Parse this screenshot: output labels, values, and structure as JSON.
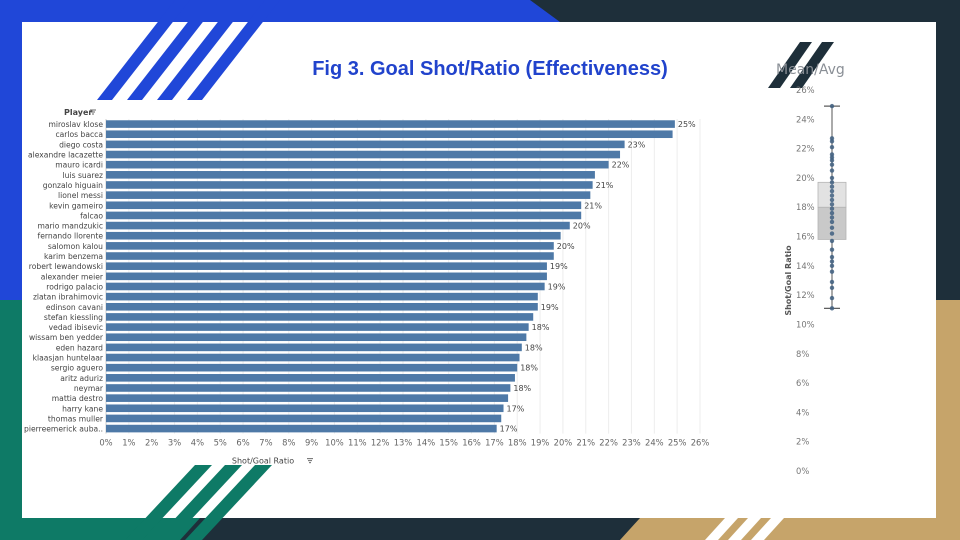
{
  "figure_title": "Fig 3. Goal Shot/Ratio (Effectiveness)",
  "side_title": "Mean/Avg",
  "colors": {
    "bar": "#4e79a7",
    "title": "#2143cc",
    "navy": "#1e2f3a",
    "blue_stripe": "#2047d8",
    "teal": "#0e7a66",
    "gold": "#c6a46a"
  },
  "icons": [
    "sort-icon"
  ],
  "chart_data": [
    {
      "type": "bar",
      "orientation": "horizontal",
      "row_header": "Player",
      "xlabel": "Shot/Goal Ratio",
      "xlim": [
        0,
        26
      ],
      "x_ticks": [
        "0%",
        "1%",
        "2%",
        "3%",
        "4%",
        "5%",
        "6%",
        "7%",
        "8%",
        "9%",
        "10%",
        "11%",
        "12%",
        "13%",
        "14%",
        "15%",
        "16%",
        "17%",
        "18%",
        "19%",
        "20%",
        "21%",
        "22%",
        "23%",
        "24%",
        "25%",
        "26%"
      ],
      "categories": [
        "miroslav klose",
        "carlos bacca",
        "diego costa",
        "alexandre lacazette",
        "mauro icardi",
        "luis suarez",
        "gonzalo higuain",
        "lionel messi",
        "kevin gameiro",
        "falcao",
        "mario mandzukic",
        "fernando llorente",
        "salomon kalou",
        "karim benzema",
        "robert lewandowski",
        "alexander meier",
        "rodrigo palacio",
        "zlatan ibrahimovic",
        "edinson cavani",
        "stefan kiessling",
        "vedad ibisevic",
        "wissam ben yedder",
        "eden hazard",
        "klaasjan huntelaar",
        "sergio aguero",
        "aritz aduriz",
        "neymar",
        "mattia destro",
        "harry kane",
        "thomas muller",
        "pierreemerick auba.."
      ],
      "values": [
        24.9,
        24.8,
        22.7,
        22.5,
        22.0,
        21.4,
        21.3,
        21.2,
        20.8,
        20.8,
        20.3,
        19.9,
        19.6,
        19.6,
        19.3,
        19.3,
        19.2,
        18.9,
        18.9,
        18.7,
        18.5,
        18.4,
        18.2,
        18.1,
        18.0,
        17.9,
        17.7,
        17.6,
        17.4,
        17.3,
        17.1
      ],
      "data_labels": [
        "25%",
        "",
        "23%",
        "",
        "22%",
        "",
        "21%",
        "",
        "21%",
        "",
        "20%",
        "",
        "20%",
        "",
        "19%",
        "",
        "19%",
        "",
        "19%",
        "",
        "18%",
        "",
        "18%",
        "",
        "18%",
        "",
        "18%",
        "",
        "17%",
        "",
        "17%"
      ]
    },
    {
      "type": "box",
      "ylabel": "Shot/Goal Ratio",
      "ylim": [
        0,
        26
      ],
      "y_ticks": [
        "0%",
        "2%",
        "4%",
        "6%",
        "8%",
        "10%",
        "12%",
        "14%",
        "16%",
        "18%",
        "20%",
        "22%",
        "24%",
        "26%"
      ],
      "min": 11.1,
      "q1": 15.8,
      "median": 18.0,
      "q3": 19.7,
      "max": 24.9,
      "points": [
        24.9,
        22.7,
        22.5,
        22.1,
        21.6,
        21.4,
        21.2,
        20.9,
        20.5,
        20.0,
        19.7,
        19.4,
        19.1,
        18.8,
        18.5,
        18.2,
        17.9,
        17.6,
        17.3,
        17.0,
        16.6,
        16.2,
        15.7,
        15.1,
        14.6,
        14.3,
        14.0,
        13.6,
        12.9,
        12.5,
        11.8,
        11.1
      ]
    }
  ]
}
